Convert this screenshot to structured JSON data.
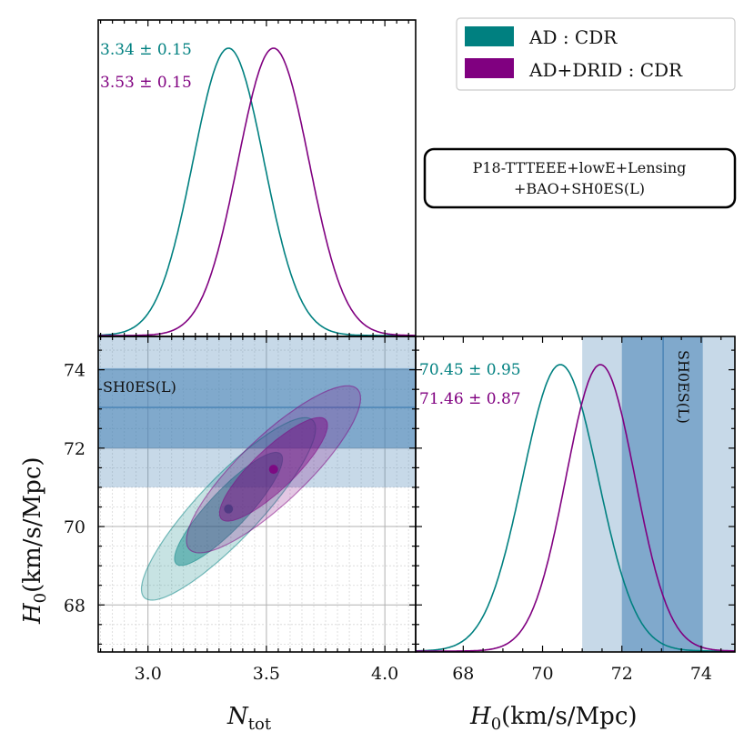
{
  "chart_data": [
    {
      "panel": "N_tot marginal",
      "type": "line",
      "colors": {
        "AD : CDR": "#008080",
        "AD+DRID : CDR": "#800080"
      },
      "xlim": [
        2.79,
        4.13
      ],
      "series": [
        {
          "name": "AD : CDR",
          "mean": 3.34,
          "sigma": 0.15,
          "label": "3.34 ± 0.15"
        },
        {
          "name": "AD+DRID : CDR",
          "mean": 3.53,
          "sigma": 0.15,
          "label": "3.53 ± 0.15"
        }
      ]
    },
    {
      "panel": "H0 vs N_tot 2D posterior",
      "type": "scatter",
      "xlim": [
        2.79,
        4.13
      ],
      "ylim": [
        66.8,
        74.85
      ],
      "xticks": [
        "3.0",
        "3.5",
        "4.0"
      ],
      "yticks": [
        "68",
        "70",
        "72",
        "74"
      ],
      "xlabel": "N",
      "xlabel_sub": "tot",
      "ylabel": "H",
      "ylabel_sub": "0",
      "ylabel_rest": "(km/s/Mpc)",
      "grid": true,
      "series": [
        {
          "name": "AD : CDR",
          "mean": [
            3.34,
            70.45
          ],
          "sigma": [
            0.15,
            0.95
          ],
          "rho": 0.88
        },
        {
          "name": "AD+DRID : CDR",
          "mean": [
            3.53,
            71.46
          ],
          "sigma": [
            0.15,
            0.87
          ],
          "rho": 0.85
        }
      ],
      "band": {
        "label": "SH0ES(L)",
        "center": 73.04,
        "one_sigma": [
          72.0,
          74.04
        ],
        "two_sigma": [
          71.0,
          75.0
        ]
      }
    },
    {
      "panel": "H0 marginal",
      "type": "line",
      "xlim": [
        66.8,
        74.85
      ],
      "xticks": [
        "68",
        "70",
        "72",
        "74"
      ],
      "xlabel": "H",
      "xlabel_sub": "0",
      "xlabel_rest": "(km/s/Mpc)",
      "series": [
        {
          "name": "AD : CDR",
          "mean": 70.45,
          "sigma": 0.95,
          "label": "70.45 ± 0.95"
        },
        {
          "name": "AD+DRID : CDR",
          "mean": 71.46,
          "sigma": 0.87,
          "label": "71.46 ± 0.87"
        }
      ],
      "band": {
        "label": "SH0ES(L)",
        "center": 73.04,
        "one_sigma": [
          72.0,
          74.04
        ],
        "two_sigma": [
          71.0,
          75.0
        ]
      }
    }
  ],
  "legend": {
    "placement": "top-right",
    "items": [
      {
        "label": "AD : CDR",
        "color": "#008080"
      },
      {
        "label": "AD+DRID : CDR",
        "color": "#800080"
      }
    ]
  },
  "dataset_box": {
    "line1": "P18-TTTEEE+lowE+Lensing",
    "line2": "+BAO+SH0ES(L)"
  },
  "band_color": "#4682b4"
}
